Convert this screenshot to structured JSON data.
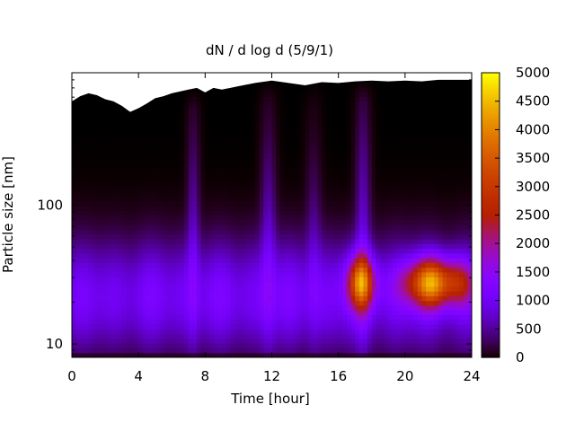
{
  "chart_data": {
    "type": "heatmap",
    "title": "dN / d log d (5/9/1)",
    "xlabel": "Time [hour]",
    "ylabel": "Particle size [nm]",
    "xlim": [
      0,
      24
    ],
    "ylim": [
      8,
      900
    ],
    "yscale": "log",
    "x_ticks": [
      0,
      4,
      8,
      12,
      16,
      20,
      24
    ],
    "y_ticks": [
      10,
      100
    ],
    "colorbar": {
      "min": 0,
      "max": 5000,
      "ticks": [
        0,
        500,
        1000,
        1500,
        2000,
        2500,
        3000,
        3500,
        4000,
        4500,
        5000
      ],
      "palette": "gnuplot (black-purple-red-yellow)"
    },
    "upper_size_limit_nm": [
      [
        0.0,
        560
      ],
      [
        0.5,
        610
      ],
      [
        1.0,
        640
      ],
      [
        1.5,
        620
      ],
      [
        2.0,
        580
      ],
      [
        2.5,
        560
      ],
      [
        3.0,
        520
      ],
      [
        3.5,
        470
      ],
      [
        4.0,
        500
      ],
      [
        4.5,
        540
      ],
      [
        5.0,
        590
      ],
      [
        5.5,
        610
      ],
      [
        6.0,
        640
      ],
      [
        7.0,
        680
      ],
      [
        7.5,
        700
      ],
      [
        8.0,
        650
      ],
      [
        8.5,
        700
      ],
      [
        9.0,
        680
      ],
      [
        10.0,
        720
      ],
      [
        11.0,
        760
      ],
      [
        12.0,
        790
      ],
      [
        13.0,
        760
      ],
      [
        14.0,
        730
      ],
      [
        15.0,
        770
      ],
      [
        16.0,
        760
      ],
      [
        17.0,
        780
      ],
      [
        18.0,
        790
      ],
      [
        19.0,
        780
      ],
      [
        20.0,
        790
      ],
      [
        21.0,
        780
      ],
      [
        22.0,
        800
      ],
      [
        23.0,
        800
      ],
      [
        24.0,
        800
      ]
    ],
    "features": [
      {
        "name": "main-mode",
        "t_center": 12,
        "t_spread": 30,
        "d_center_nm": 22,
        "log_spread": 0.28,
        "value": 1250
      },
      {
        "name": "burst-17h",
        "t_center": 17.4,
        "t_spread": 0.6,
        "d_center_nm": 28,
        "log_spread": 0.13,
        "value": 3100
      },
      {
        "name": "burst-22h",
        "t_center": 21.9,
        "t_spread": 1.3,
        "d_center_nm": 28,
        "log_spread": 0.12,
        "value": 3900
      },
      {
        "name": "stripe-7.3h",
        "t_center": 7.3,
        "t_spread": 0.25,
        "d_center_nm": 60,
        "log_spread": 0.55,
        "value": 700
      },
      {
        "name": "stripe-11.8h",
        "t_center": 11.8,
        "t_spread": 0.3,
        "d_center_nm": 55,
        "log_spread": 0.55,
        "value": 750
      },
      {
        "name": "stripe-14.5h",
        "t_center": 14.5,
        "t_spread": 0.3,
        "d_center_nm": 50,
        "log_spread": 0.5,
        "value": 550
      },
      {
        "name": "stripe-17.5h",
        "t_center": 17.5,
        "t_spread": 0.3,
        "d_center_nm": 70,
        "log_spread": 0.6,
        "value": 700
      }
    ]
  }
}
